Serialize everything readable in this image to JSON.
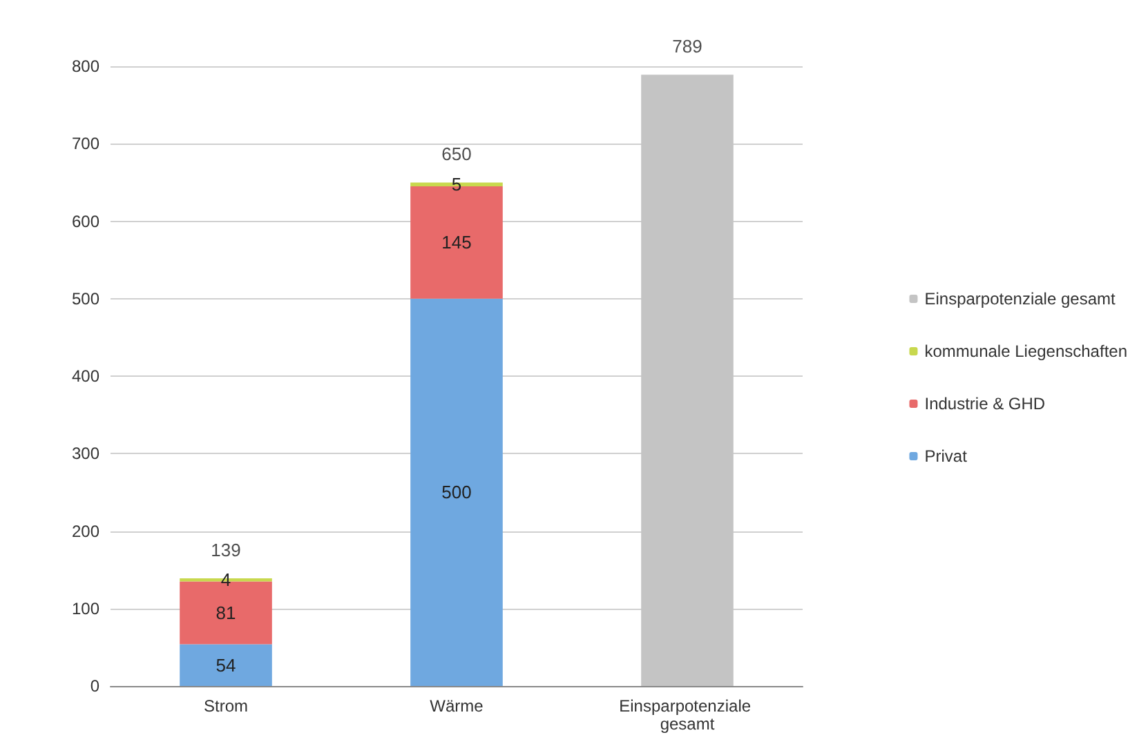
{
  "chart_data": {
    "type": "bar",
    "stacked": true,
    "categories": [
      "Strom",
      "Wärme",
      "Einsparpotenziale gesamt"
    ],
    "series": [
      {
        "name": "Privat",
        "color": "#6fa8e0",
        "values": [
          54,
          500,
          null
        ],
        "value_labels": [
          "54",
          "500",
          null
        ]
      },
      {
        "name": "Industrie & GHD",
        "color": "#e86a6a",
        "values": [
          81,
          145,
          null
        ],
        "value_labels": [
          "81",
          "145",
          null
        ]
      },
      {
        "name": "kommunale Liegenschaften",
        "color": "#c8d84e",
        "values": [
          4,
          5,
          null
        ],
        "value_labels": [
          "4",
          "5",
          null
        ]
      },
      {
        "name": "Einsparpotenziale gesamt",
        "color": "#c4c4c4",
        "values": [
          null,
          null,
          789
        ],
        "value_labels": [
          null,
          null,
          null
        ]
      }
    ],
    "totals": [
      "139",
      "650",
      "789"
    ],
    "ylim": [
      0,
      800
    ],
    "yticks": [
      0,
      100,
      200,
      300,
      400,
      500,
      600,
      700,
      800
    ],
    "grid": "y",
    "legend": "right"
  }
}
